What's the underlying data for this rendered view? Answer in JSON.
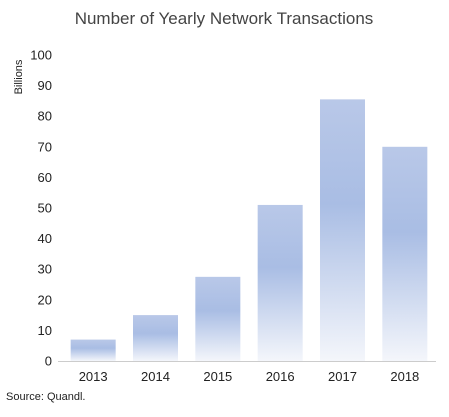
{
  "chart_data": {
    "type": "bar",
    "title": "Number of Yearly Network Transactions",
    "ylabel": "Billions",
    "xlabel": "",
    "source": "Source: Quandl.",
    "categories": [
      "2013",
      "2014",
      "2015",
      "2016",
      "2017",
      "2018"
    ],
    "values": [
      7,
      15,
      27.5,
      51,
      85.5,
      70
    ],
    "ylim": [
      0,
      100
    ],
    "yticks": [
      0,
      10,
      20,
      30,
      40,
      50,
      60,
      70,
      80,
      90,
      100
    ],
    "grid": false,
    "legend": "none",
    "bar_color_top": "#b9c8e8",
    "bar_color_mid": "#a9bde4",
    "bar_color_bottom": "#f4f6fb"
  }
}
